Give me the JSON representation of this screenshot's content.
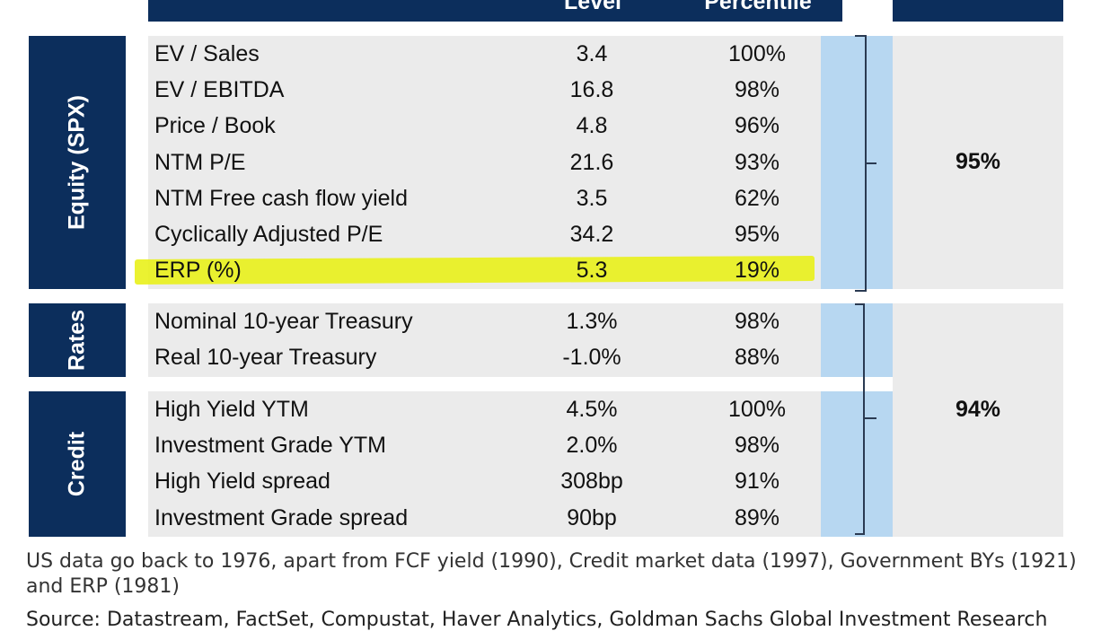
{
  "header": {
    "level": "Level",
    "percentile": "Percentile"
  },
  "categories": [
    {
      "label": "Equity (SPX)"
    },
    {
      "label": "Rates"
    },
    {
      "label": "Credit"
    }
  ],
  "rows": [
    {
      "metric": "EV / Sales",
      "level": "3.4",
      "percentile": "100%"
    },
    {
      "metric": "EV / EBITDA",
      "level": "16.8",
      "percentile": "98%"
    },
    {
      "metric": "Price / Book",
      "level": "4.8",
      "percentile": "96%"
    },
    {
      "metric": "NTM P/E",
      "level": "21.6",
      "percentile": "93%"
    },
    {
      "metric": "NTM Free cash flow yield",
      "level": "3.5",
      "percentile": "62%"
    },
    {
      "metric": "Cyclically Adjusted P/E",
      "level": "34.2",
      "percentile": "95%"
    },
    {
      "metric": "ERP (%)",
      "level": "5.3",
      "percentile": "19%"
    },
    {
      "metric": "Nominal 10-year Treasury",
      "level": "1.3%",
      "percentile": "98%"
    },
    {
      "metric": "Real 10-year Treasury",
      "level": "-1.0%",
      "percentile": "88%"
    },
    {
      "metric": "High Yield YTM",
      "level": "4.5%",
      "percentile": "100%"
    },
    {
      "metric": "Investment Grade YTM",
      "level": "2.0%",
      "percentile": "98%"
    },
    {
      "metric": "High Yield spread",
      "level": "308bp",
      "percentile": "91%"
    },
    {
      "metric": "Investment Grade spread",
      "level": "90bp",
      "percentile": "89%"
    }
  ],
  "aggregates": {
    "equity": "95%",
    "rates_credit": "94%"
  },
  "footnote": "US data go back to 1976, apart from FCF yield (1990), Credit market data (1997), Government BYs (1921) and ERP (1981)",
  "source": "Source: Datastream, FactSet, Compustat, Haver Analytics, Goldman Sachs Global Investment Research",
  "colors": {
    "navy": "#0c2e5c",
    "percentile_fill": "#b7d7f1",
    "row_fill": "#ebebeb",
    "highlight": "#e8f014"
  }
}
